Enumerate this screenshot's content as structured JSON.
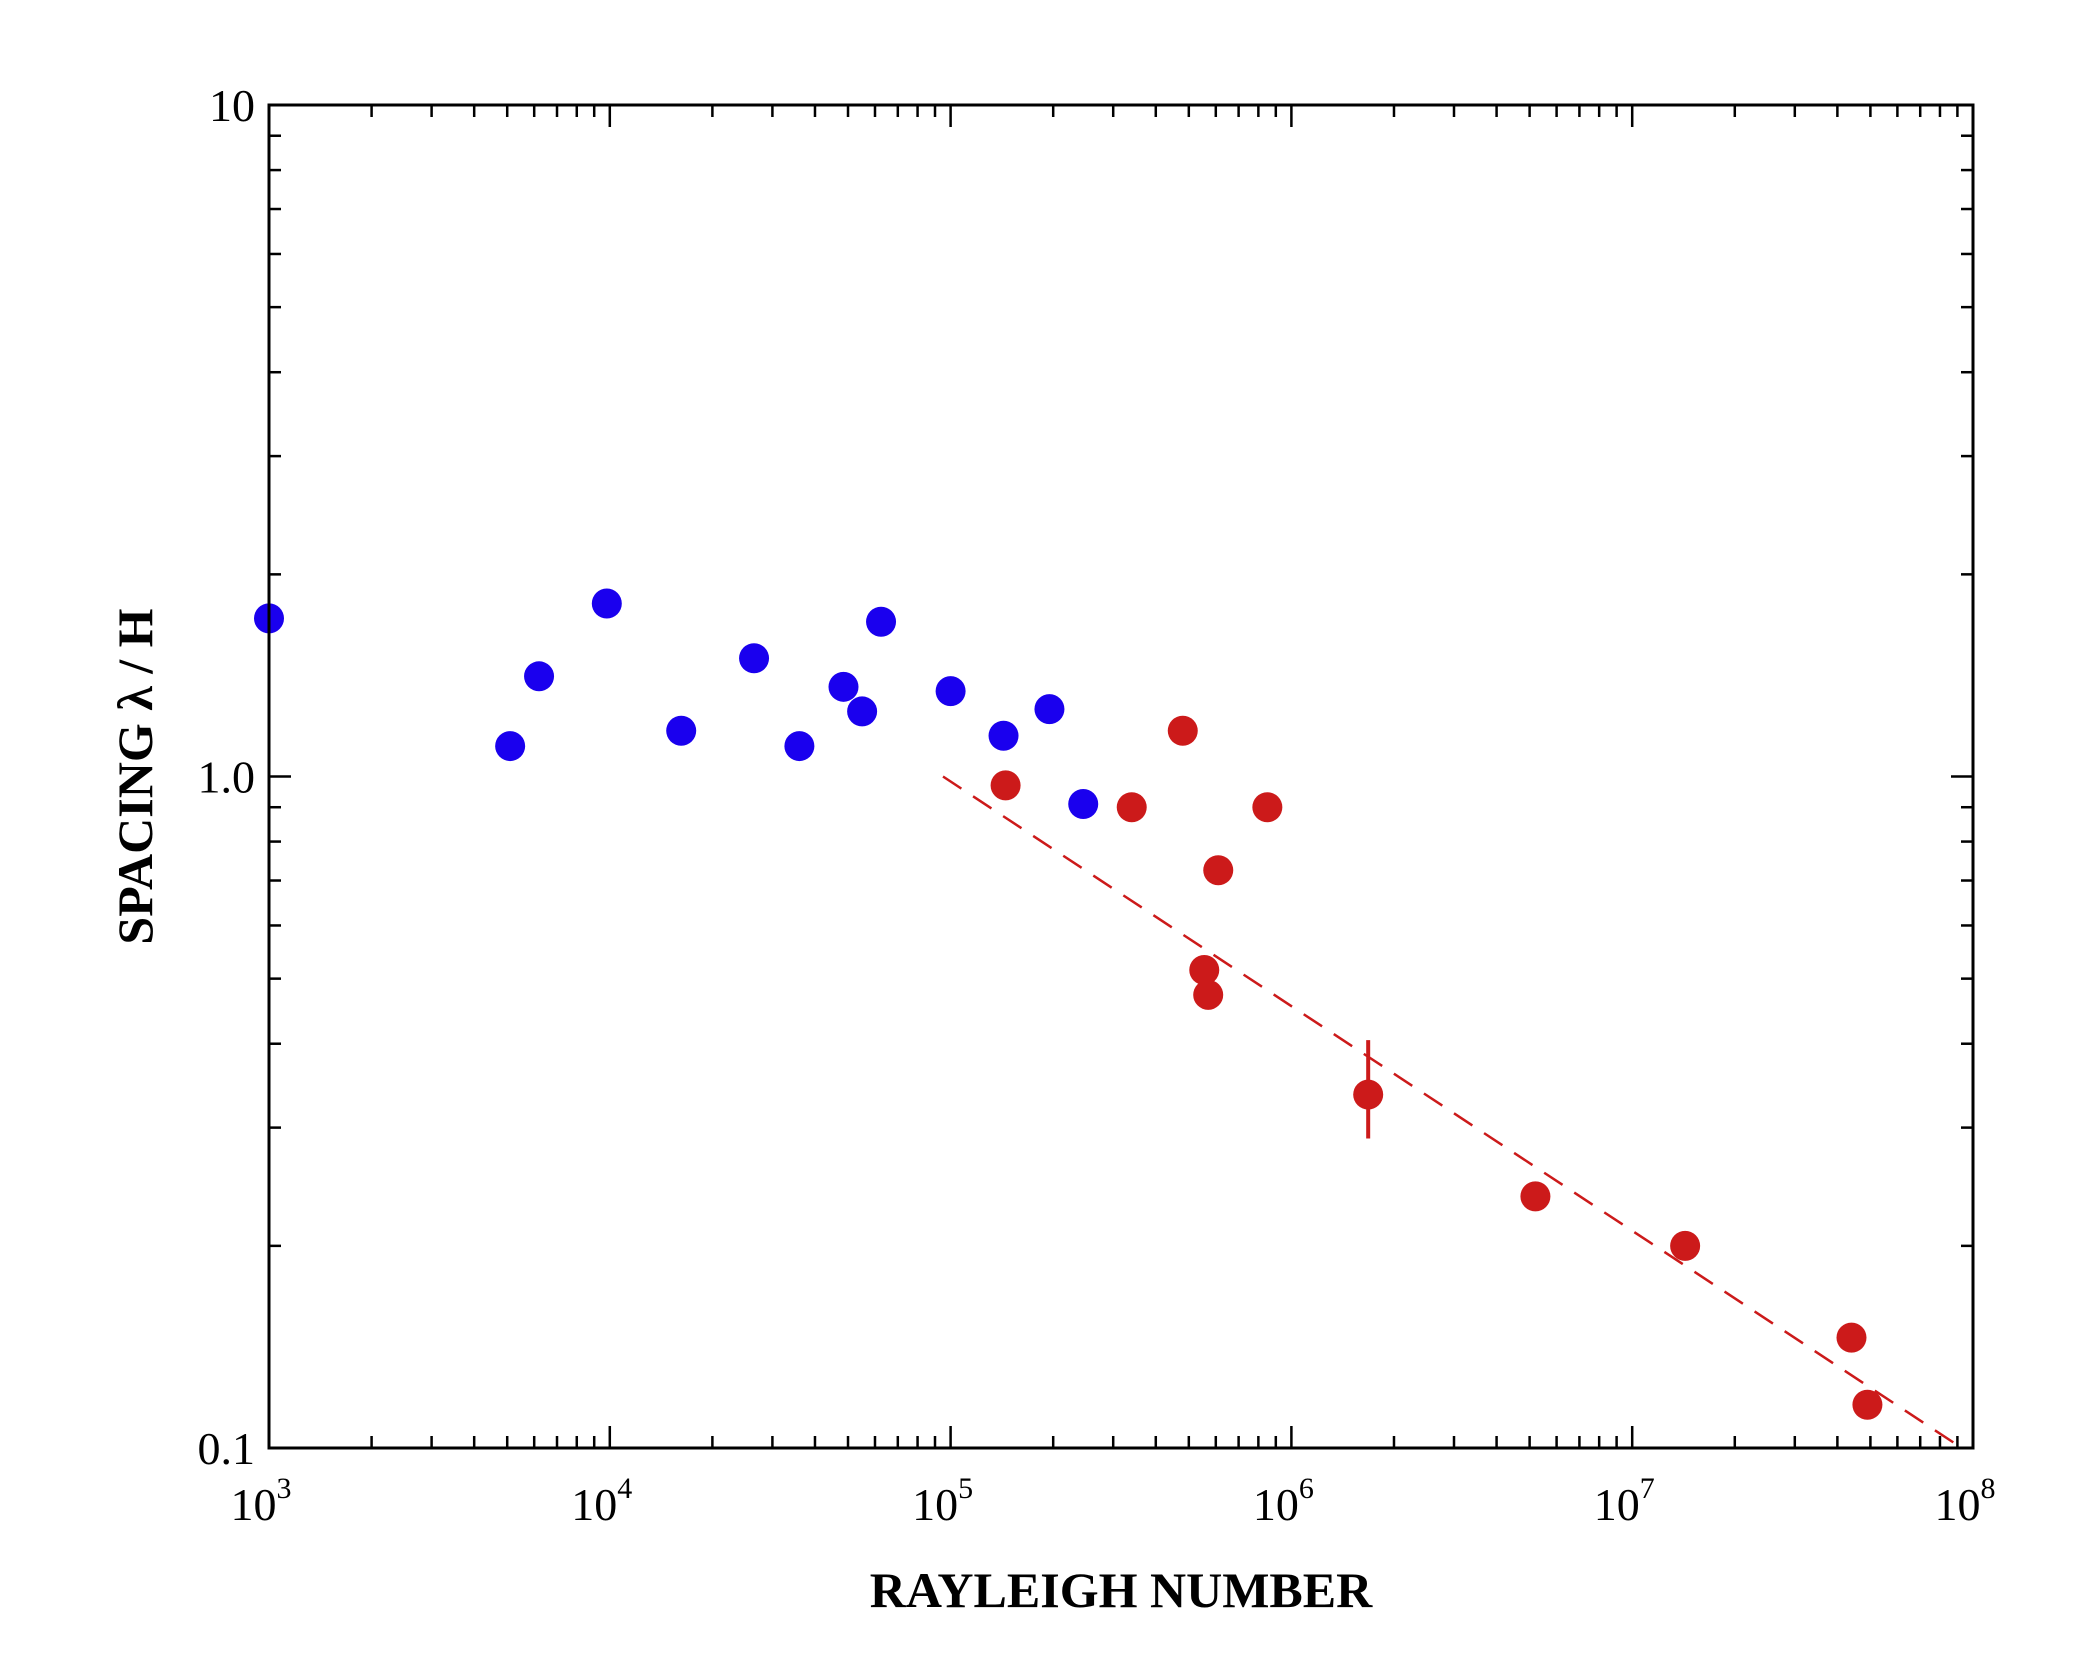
{
  "chart_data": {
    "type": "scatter",
    "title": "",
    "xlabel": "RAYLEIGH NUMBER",
    "ylabel": "SPACING λ / H",
    "xscale": "log",
    "yscale": "log",
    "xlim": [
      1000,
      100000000
    ],
    "ylim": [
      0.1,
      10
    ],
    "grid": false,
    "legend": "none",
    "x_ticks": [
      {
        "value": 1000,
        "base": "10",
        "exp": "3"
      },
      {
        "value": 10000,
        "base": "10",
        "exp": "4"
      },
      {
        "value": 100000,
        "base": "10",
        "exp": "5"
      },
      {
        "value": 1000000,
        "base": "10",
        "exp": "6"
      },
      {
        "value": 10000000,
        "base": "10",
        "exp": "7"
      },
      {
        "value": 100000000,
        "base": "10",
        "exp": "8"
      }
    ],
    "y_ticks": [
      {
        "value": 10,
        "label": "10"
      },
      {
        "value": 1,
        "label": "1.0"
      },
      {
        "value": 0.1,
        "label": "0.1"
      }
    ],
    "series": [
      {
        "color": "#1a00ee",
        "points": [
          {
            "x": 1000,
            "y": 1.72
          },
          {
            "x": 5100,
            "y": 1.11
          },
          {
            "x": 6200,
            "y": 1.41
          },
          {
            "x": 9800,
            "y": 1.81
          },
          {
            "x": 16200,
            "y": 1.17
          },
          {
            "x": 26500,
            "y": 1.5
          },
          {
            "x": 36000,
            "y": 1.11
          },
          {
            "x": 48500,
            "y": 1.36
          },
          {
            "x": 55000,
            "y": 1.25
          },
          {
            "x": 62500,
            "y": 1.7
          },
          {
            "x": 100000,
            "y": 1.34
          },
          {
            "x": 143000,
            "y": 1.15
          },
          {
            "x": 195000,
            "y": 1.26
          },
          {
            "x": 245000,
            "y": 0.91
          }
        ]
      },
      {
        "color": "#cc1a1a",
        "points": [
          {
            "x": 145000,
            "y": 0.97
          },
          {
            "x": 340000,
            "y": 0.9
          },
          {
            "x": 480000,
            "y": 1.17
          },
          {
            "x": 555000,
            "y": 0.515
          },
          {
            "x": 570000,
            "y": 0.473
          },
          {
            "x": 610000,
            "y": 0.725
          },
          {
            "x": 850000,
            "y": 0.9
          },
          {
            "x": 1680000,
            "y": 0.336,
            "err_low": 0.289,
            "err_high": 0.405
          },
          {
            "x": 5200000,
            "y": 0.237
          },
          {
            "x": 14300000,
            "y": 0.2
          },
          {
            "x": 44000000,
            "y": 0.146
          },
          {
            "x": 49000000,
            "y": 0.116
          }
        ]
      }
    ],
    "fit_line": {
      "color": "#cc1a1a",
      "style": "dashed",
      "points": [
        {
          "x": 95000,
          "y": 1.0
        },
        {
          "x": 90000000,
          "y": 0.101
        }
      ]
    }
  }
}
